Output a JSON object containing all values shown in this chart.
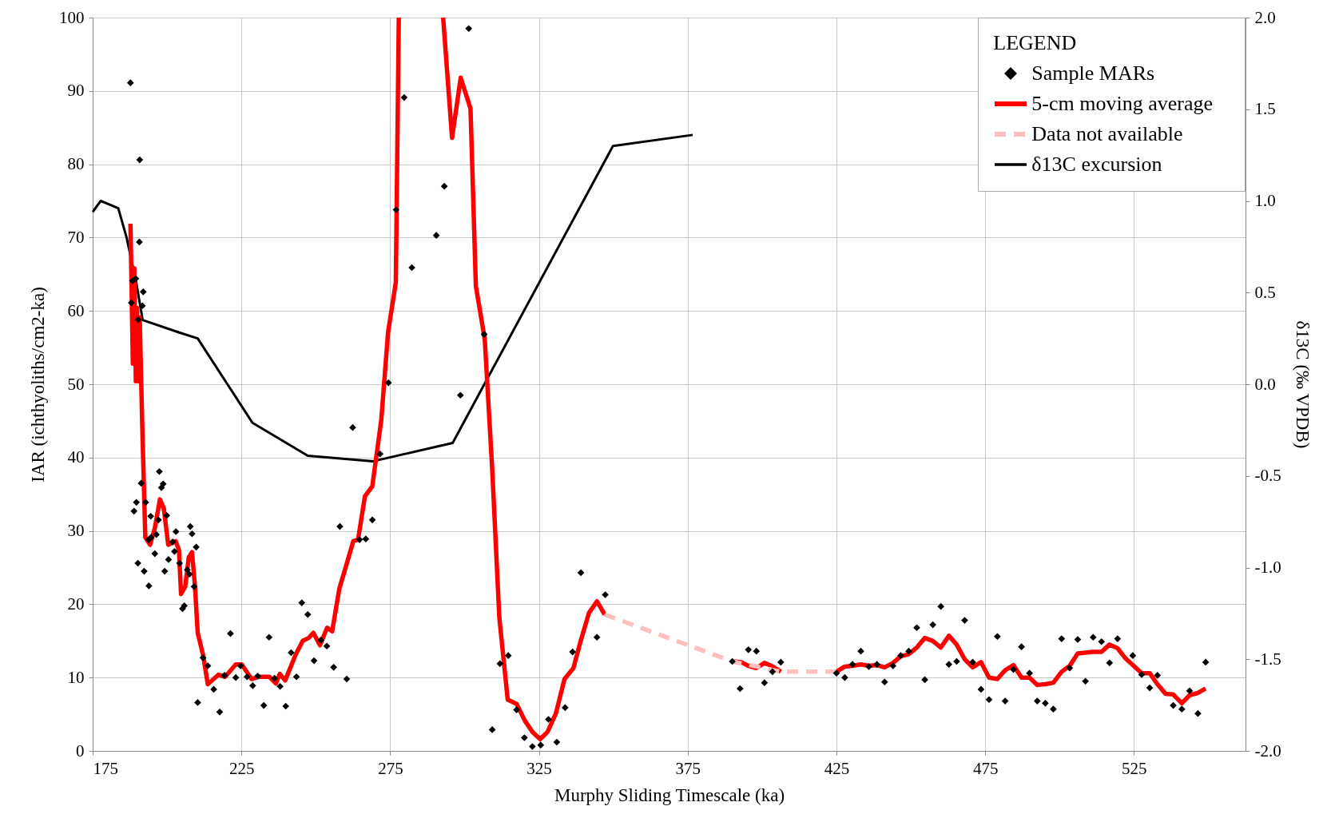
{
  "chart_data": {
    "type": "line",
    "xlabel": "Murphy Sliding Timescale (ka)",
    "ylabel": "IAR (ichthyoliths/cm2-ka)",
    "y2label": "δ13C (‰ VPDB)",
    "legend_title": "LEGEND",
    "legend": "top right",
    "grid": true,
    "xlim": [
      175,
      562.5
    ],
    "xticks": [
      175,
      225,
      275,
      325,
      375,
      425,
      475,
      525
    ],
    "ylim": [
      0,
      100
    ],
    "yticks": [
      0,
      10,
      20,
      30,
      40,
      50,
      60,
      70,
      80,
      90,
      100
    ],
    "y2lim": [
      -2,
      2
    ],
    "y2ticks": [
      {
        "value": -2,
        "label": "-2.0"
      },
      {
        "value": -1.5,
        "label": "-1.5"
      },
      {
        "value": -1,
        "label": "-1.0"
      },
      {
        "value": -0.5,
        "label": "-0.5"
      },
      {
        "value": 0,
        "label": "0.0"
      },
      {
        "value": 0.5,
        "label": "0.5"
      },
      {
        "value": 1,
        "label": "1.0"
      },
      {
        "value": 1.5,
        "label": "1.5"
      },
      {
        "value": 2,
        "label": "2.0"
      }
    ],
    "series": [
      {
        "name": "Sample MARs",
        "type": "scatter",
        "marker": "diamond",
        "color": "#000000",
        "x": [
          187.7,
          190.8,
          190.7,
          188.4,
          189.5,
          192.0,
          188.0,
          191.7,
          190.3,
          191.3,
          189.7,
          188.9,
          192.8,
          197.4,
          198.7,
          198.1,
          194.5,
          199.9,
          196.4,
          194.6,
          197.1,
          193.8,
          195.9,
          203.0,
          201.9,
          202.5,
          207.8,
          208.4,
          209.8,
          190.2,
          192.3,
          193.9,
          199.2,
          200.5,
          204.2,
          206.8,
          207.5,
          209.1,
          205.8,
          205.2,
          210.3,
          212.1,
          213.7,
          215.7,
          217.7,
          219.3,
          221.3,
          223.1,
          224.7,
          226.9,
          228.8,
          230.5,
          232.5,
          234.3,
          236.1,
          238.0,
          239.9,
          241.7,
          243.5,
          245.3,
          247.3,
          249.4,
          251.7,
          253.7,
          256.0,
          258.1,
          260.4,
          262.4,
          264.7,
          266.8,
          269.0,
          271.6,
          274.4,
          277.0,
          279.7,
          282.3,
          290.5,
          293.2,
          301.4,
          298.6,
          306.6,
          311.9,
          314.7,
          309.3,
          317.5,
          320.1,
          322.8,
          325.6,
          328.2,
          331.0,
          333.8,
          336.3,
          339.1,
          344.5,
          347.3,
          390.0,
          392.6,
          395.4,
          398.1,
          400.8,
          403.5,
          406.3,
          425.0,
          427.8,
          430.4,
          433.2,
          435.9,
          438.6,
          441.2,
          444.0,
          446.6,
          449.3,
          452.0,
          454.7,
          457.4,
          460.1,
          462.8,
          465.4,
          468.1,
          470.8,
          473.6,
          476.3,
          479.1,
          481.7,
          484.5,
          487.2,
          489.9,
          492.5,
          495.2,
          497.9,
          500.7,
          503.4,
          506.1,
          508.7,
          511.3,
          514.1,
          516.8,
          519.5,
          524.6,
          527.6,
          530.3,
          532.9,
          538.2,
          541.1,
          543.7,
          546.5,
          549.1
        ],
        "values": [
          91.1,
          80.6,
          69.4,
          64.1,
          64.4,
          62.6,
          61.1,
          60.7,
          58.8,
          36.5,
          33.9,
          32.7,
          33.9,
          38.1,
          36.4,
          35.9,
          32.0,
          32.1,
          29.5,
          29.1,
          31.5,
          28.8,
          26.9,
          29.9,
          28.5,
          27.2,
          30.6,
          29.6,
          27.8,
          25.6,
          24.5,
          22.5,
          24.5,
          26.1,
          25.6,
          24.7,
          24.1,
          22.4,
          19.8,
          19.4,
          6.6,
          12.7,
          11.6,
          8.4,
          5.3,
          10.3,
          16.0,
          10.0,
          11.6,
          10.1,
          8.9,
          10.2,
          6.2,
          15.5,
          9.9,
          8.8,
          6.1,
          13.4,
          10.1,
          20.2,
          18.6,
          12.3,
          15.1,
          14.3,
          11.4,
          30.6,
          9.8,
          44.1,
          28.8,
          28.9,
          31.5,
          40.5,
          50.2,
          73.8,
          89.1,
          65.9,
          70.3,
          77.0,
          98.5,
          48.5,
          56.8,
          11.9,
          13.0,
          2.9,
          5.6,
          1.8,
          0.6,
          0.8,
          4.3,
          1.2,
          5.9,
          13.5,
          24.3,
          15.5,
          21.3,
          12.2,
          8.5,
          13.8,
          13.6,
          9.3,
          10.8,
          12.1,
          10.6,
          10.0,
          11.8,
          13.6,
          11.5,
          11.8,
          9.4,
          11.6,
          13.0,
          13.6,
          16.8,
          9.7,
          17.2,
          19.7,
          11.8,
          12.2,
          17.8,
          12.1,
          8.4,
          7.0,
          15.6,
          6.8,
          11.1,
          14.2,
          10.6,
          6.8,
          6.5,
          5.7,
          15.3,
          11.3,
          15.2,
          9.5,
          15.5,
          14.9,
          12.0,
          15.3,
          13.0,
          10.4,
          8.6,
          10.3,
          6.2,
          5.7,
          8.2,
          5.1,
          12.1
        ]
      },
      {
        "name": "5-cm moving average",
        "color": "#ff0000",
        "x": [
          187.7,
          188.0,
          188.5,
          189.0,
          189.5,
          189.9,
          190.3,
          190.8,
          191.7,
          192.7,
          194.3,
          195.9,
          197.6,
          198.9,
          200.4,
          202.9,
          204.0,
          204.7,
          206.1,
          207.3,
          208.4,
          209.4,
          210.3,
          212.1,
          213.7,
          217.3,
          219.5,
          223.1,
          225.1,
          228.4,
          230.5,
          234.4,
          236.6,
          237.9,
          239.7,
          243.2,
          245.6,
          247.6,
          249.2,
          251.4,
          253.8,
          255.5,
          257.9,
          260.1,
          262.6,
          264.2,
          266.5,
          269.0,
          272.0,
          274.3,
          276.9,
          277.9,
          285.0,
          292.8,
          295.8,
          298.7,
          302.0,
          303.8,
          306.8,
          309.3,
          311.7,
          314.5,
          317.5,
          320.3,
          322.8,
          325.4,
          327.9,
          330.7,
          333.6,
          336.6,
          338.9,
          341.8,
          344.5,
          347.1,
          390.0,
          390.6,
          393.0,
          395.4,
          398.1,
          400.8,
          403.2,
          406.3,
          415.0,
          425.0,
          427.8,
          430.4,
          433.2,
          435.9,
          438.6,
          441.2,
          444.0,
          446.6,
          449.3,
          452.0,
          454.7,
          457.4,
          460.1,
          462.8,
          465.4,
          468.1,
          470.8,
          473.6,
          476.3,
          479.1,
          481.7,
          484.5,
          487.2,
          489.9,
          492.5,
          495.2,
          497.9,
          500.7,
          503.4,
          506.1,
          508.7,
          511.3,
          514.1,
          516.8,
          519.5,
          522.2,
          524.9,
          527.6,
          530.3,
          532.9,
          535.6,
          538.2,
          541.1,
          543.7,
          546.5,
          549.1
        ],
        "values": [
          71.9,
          65.1,
          52.8,
          65.8,
          50.4,
          60.4,
          50.4,
          59.1,
          43.8,
          29.1,
          28.1,
          30.4,
          34.3,
          33.1,
          28.1,
          28.6,
          27.4,
          21.4,
          22.4,
          26.4,
          27.1,
          22.4,
          16.1,
          13.1,
          9.1,
          10.4,
          10.1,
          11.8,
          11.8,
          9.8,
          10.1,
          10.1,
          9.2,
          10.5,
          9.6,
          13.1,
          15.0,
          15.4,
          16.1,
          14.4,
          16.8,
          16.3,
          22.1,
          25.1,
          28.6,
          28.8,
          34.7,
          36.1,
          45.1,
          57.1,
          63.9,
          100,
          null,
          100,
          83.6,
          91.8,
          87.6,
          63.4,
          56.1,
          38.4,
          18.1,
          7.0,
          6.4,
          4.1,
          2.6,
          1.6,
          2.6,
          5.1,
          9.8,
          11.3,
          14.8,
          18.8,
          20.4,
          18.6,
          null,
          12.2,
          12.1,
          11.6,
          11.3,
          12.0,
          11.6,
          10.8,
          null,
          10.8,
          11.5,
          11.6,
          11.8,
          11.6,
          11.7,
          11.4,
          12.0,
          12.9,
          13.2,
          14.1,
          15.4,
          15.0,
          14.1,
          15.7,
          14.5,
          12.5,
          11.4,
          12.1,
          10.0,
          9.8,
          11.0,
          11.7,
          10.0,
          10.0,
          9.0,
          9.1,
          9.3,
          10.8,
          11.6,
          13.3,
          13.4,
          13.5,
          13.5,
          14.5,
          14.0,
          12.6,
          11.6,
          10.6,
          10.6,
          9.1,
          7.8,
          7.7,
          6.5,
          7.6,
          7.9,
          8.5
        ]
      },
      {
        "name": "Data not available",
        "color": "#ffbfbf",
        "line_style": "dashed",
        "x": [
          347.1,
          390.0,
          406.3,
          425.0
        ],
        "values": [
          18.6,
          12.2,
          10.8,
          10.8
        ]
      },
      {
        "name": "δ13C excursion",
        "color": "#000000",
        "axis": "y2",
        "x": [
          175,
          177.7,
          183.6,
          186.4,
          189.7,
          191.8,
          204.5,
          210.3,
          228.7,
          247.3,
          269.3,
          296.0,
          349.9,
          376.7
        ],
        "values": [
          0.94,
          1.0,
          0.96,
          0.8,
          0.55,
          0.35,
          0.28,
          0.25,
          -0.21,
          -0.39,
          -0.42,
          -0.32,
          1.3,
          1.36
        ]
      }
    ]
  }
}
